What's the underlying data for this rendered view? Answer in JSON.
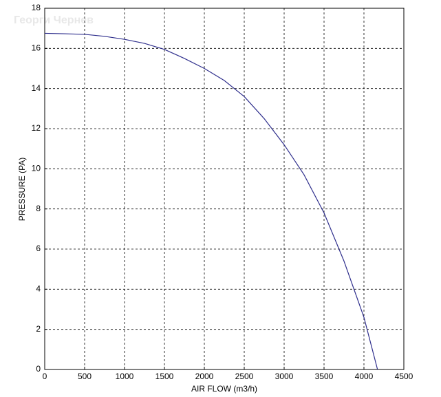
{
  "chart_data": {
    "type": "line",
    "watermark": "Георги Чернев",
    "xlabel": "AIR FLOW (m3/h)",
    "ylabel": "PRESSURE (PA)",
    "x": [
      0,
      250,
      500,
      750,
      1000,
      1250,
      1500,
      1750,
      2000,
      2250,
      2500,
      2750,
      3000,
      3250,
      3500,
      3750,
      4000,
      4170
    ],
    "series": [
      {
        "name": "PRESSURE (PA)",
        "color": "#2e2e8c",
        "values": [
          16.75,
          16.73,
          16.7,
          16.6,
          16.45,
          16.25,
          15.95,
          15.5,
          15.0,
          14.4,
          13.6,
          12.5,
          11.2,
          9.7,
          7.8,
          5.4,
          2.6,
          0
        ]
      }
    ],
    "xlim": [
      0,
      4500
    ],
    "ylim": [
      0,
      18
    ],
    "xticks": [
      0,
      500,
      1000,
      1500,
      2000,
      2500,
      3000,
      3500,
      4000,
      4500
    ],
    "yticks": [
      0,
      2,
      4,
      6,
      8,
      10,
      12,
      14,
      16,
      18
    ],
    "grid": true
  }
}
